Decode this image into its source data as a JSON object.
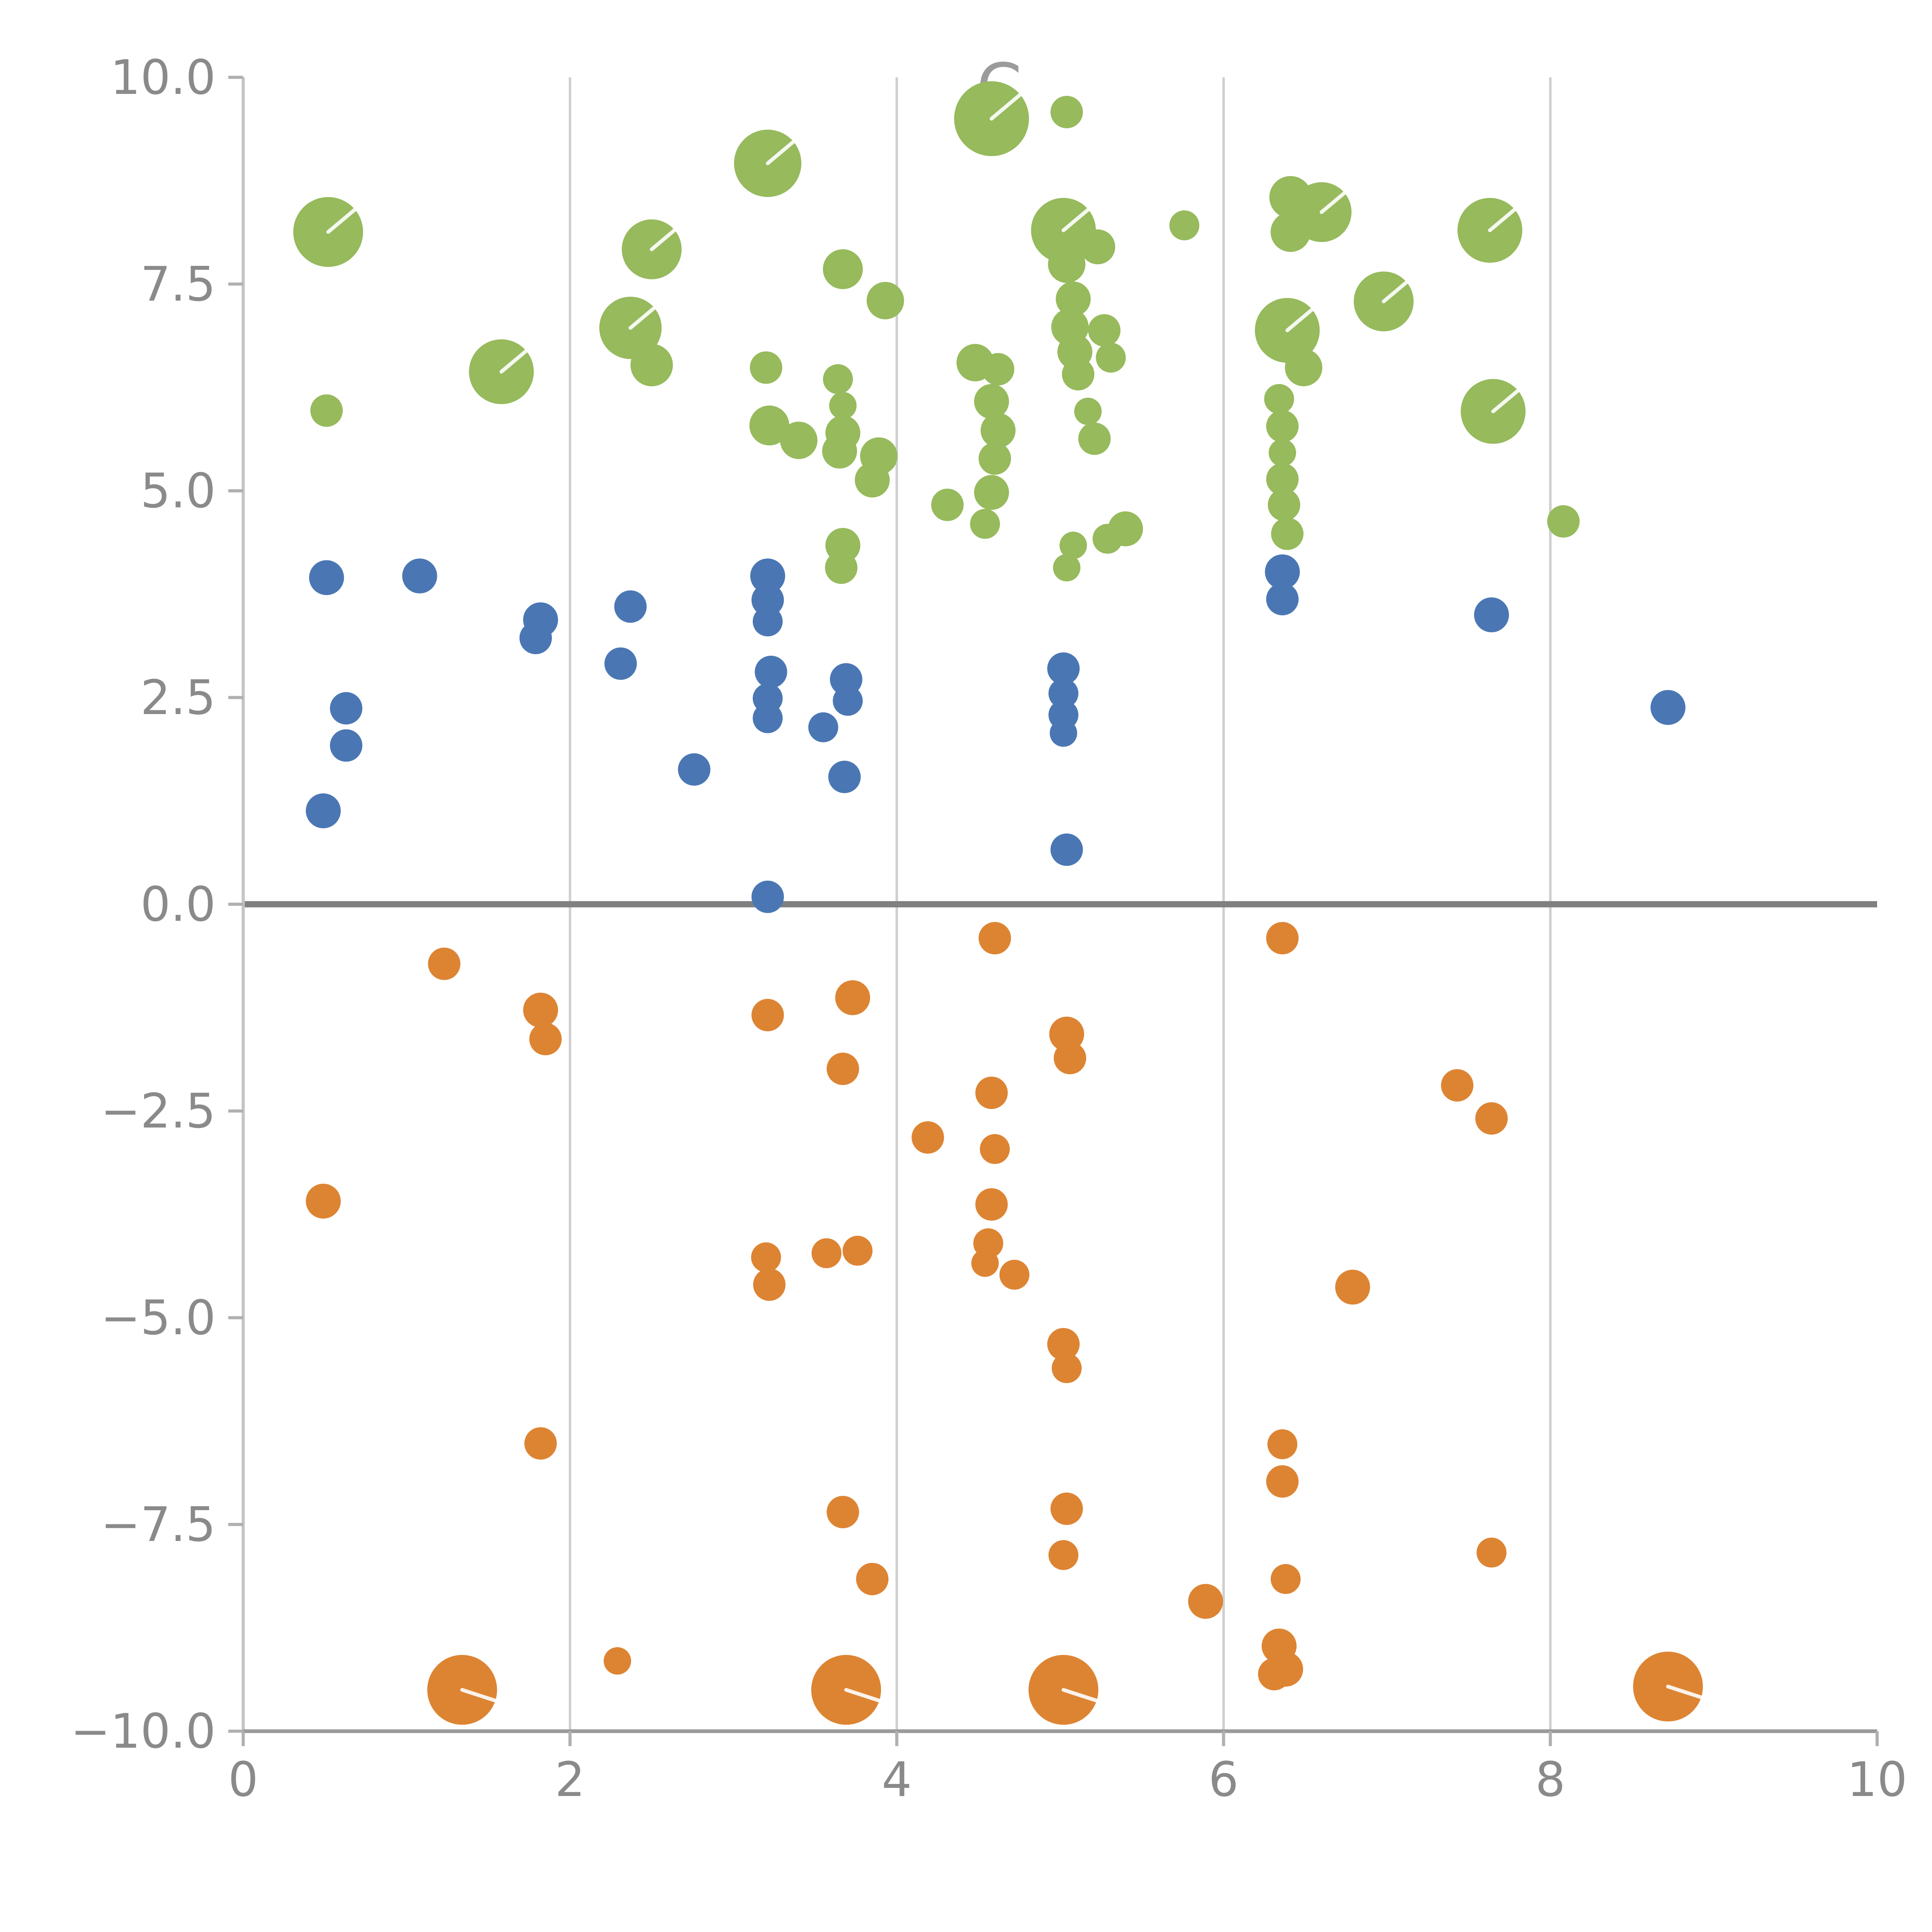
{
  "title": {
    "text": "C",
    "color": "#9b9b9b"
  },
  "colors": {
    "green": "#96ba5c",
    "blue": "#4a77b4",
    "orange": "#dd8433",
    "grid": "#cfcfcf",
    "zero_line": "#808080",
    "axis_text": "#8a8a8a",
    "left_spine": "#c4c4c4",
    "bottom_spine": "#9a9a9a",
    "tick_mark": "#b0b0b0",
    "background": "#ffffff"
  },
  "chart_data": {
    "type": "scatter",
    "title": "C",
    "xlabel": "",
    "ylabel": "",
    "xlim": [
      0,
      10
    ],
    "ylim": [
      -10,
      10
    ],
    "grid": "vertical-only",
    "legend_position": "none",
    "x_ticks": [
      0,
      2,
      4,
      6,
      8,
      10
    ],
    "x_tick_labels": [
      "0",
      "2",
      "4",
      "6",
      "8",
      "10"
    ],
    "y_ticks": [
      10.0,
      7.5,
      5.0,
      2.5,
      0.0,
      -2.5,
      -5.0,
      -7.5,
      -10.0
    ],
    "y_tick_labels": [
      "10.0",
      "7.5",
      "5.0",
      "2.5",
      "0.0",
      "−2.5",
      "−5.0",
      "−7.5",
      "−10.0"
    ],
    "grid_x": [
      2,
      4,
      6,
      8
    ],
    "zero_line_y": 0,
    "series": [
      {
        "name": "green-group",
        "color": "#96ba5c",
        "hand_angle_deg": -40,
        "points": [
          [
            0.52,
            8.13,
            28
          ],
          [
            0.51,
            5.97,
            13
          ],
          [
            1.58,
            6.44,
            26
          ],
          [
            2.5,
            7.92,
            24
          ],
          [
            2.37,
            6.97,
            25
          ],
          [
            2.5,
            6.52,
            17
          ],
          [
            3.21,
            8.96,
            27
          ],
          [
            3.2,
            6.49,
            13
          ],
          [
            3.22,
            5.79,
            16
          ],
          [
            3.4,
            5.61,
            15
          ],
          [
            3.67,
            7.68,
            16
          ],
          [
            3.64,
            6.35,
            12
          ],
          [
            3.67,
            6.03,
            11
          ],
          [
            3.67,
            5.7,
            14
          ],
          [
            3.65,
            5.48,
            14
          ],
          [
            3.93,
            7.3,
            15
          ],
          [
            3.89,
            5.42,
            15
          ],
          [
            3.85,
            5.13,
            14
          ],
          [
            3.67,
            4.34,
            14
          ],
          [
            3.66,
            4.07,
            13
          ],
          [
            4.31,
            4.83,
            13
          ],
          [
            4.58,
            9.5,
            30
          ],
          [
            5.04,
            9.58,
            13
          ],
          [
            4.48,
            6.55,
            15
          ],
          [
            4.62,
            6.47,
            13
          ],
          [
            4.58,
            6.08,
            14
          ],
          [
            4.62,
            5.73,
            14
          ],
          [
            4.6,
            5.39,
            13
          ],
          [
            4.58,
            4.98,
            14
          ],
          [
            4.54,
            4.6,
            12
          ],
          [
            5.02,
            8.15,
            26
          ],
          [
            5.04,
            7.74,
            15
          ],
          [
            5.08,
            7.32,
            14
          ],
          [
            5.06,
            6.98,
            15
          ],
          [
            5.09,
            6.68,
            14
          ],
          [
            5.11,
            6.41,
            13
          ],
          [
            5.23,
            7.95,
            14
          ],
          [
            5.27,
            6.94,
            13
          ],
          [
            5.31,
            6.61,
            12
          ],
          [
            5.17,
            5.96,
            11
          ],
          [
            5.21,
            5.63,
            13
          ],
          [
            5.04,
            4.07,
            11
          ],
          [
            5.08,
            4.34,
            11
          ],
          [
            5.29,
            4.42,
            12
          ],
          [
            5.4,
            4.54,
            14
          ],
          [
            5.76,
            8.21,
            12
          ],
          [
            6.41,
            8.55,
            17
          ],
          [
            6.6,
            8.37,
            24
          ],
          [
            6.41,
            8.13,
            16
          ],
          [
            6.39,
            6.94,
            26
          ],
          [
            6.49,
            6.49,
            15
          ],
          [
            6.34,
            6.11,
            12
          ],
          [
            6.36,
            5.78,
            13
          ],
          [
            6.36,
            5.46,
            11
          ],
          [
            6.36,
            5.14,
            13
          ],
          [
            6.37,
            4.83,
            13
          ],
          [
            6.39,
            4.48,
            13
          ],
          [
            6.98,
            7.29,
            24
          ],
          [
            7.63,
            8.15,
            26
          ],
          [
            7.65,
            5.96,
            26
          ],
          [
            8.08,
            4.63,
            13
          ]
        ]
      },
      {
        "name": "blue-group",
        "color": "#4a77b4",
        "hand_angle_deg": -40,
        "points": [
          [
            0.51,
            3.95,
            14
          ],
          [
            1.08,
            3.97,
            14
          ],
          [
            0.63,
            2.37,
            13
          ],
          [
            0.63,
            1.92,
            13
          ],
          [
            0.49,
            1.13,
            14
          ],
          [
            1.82,
            3.44,
            14
          ],
          [
            1.79,
            3.22,
            13
          ],
          [
            2.37,
            3.6,
            13
          ],
          [
            2.31,
            2.91,
            13
          ],
          [
            2.76,
            1.63,
            13
          ],
          [
            3.21,
            3.97,
            14
          ],
          [
            3.21,
            3.68,
            13
          ],
          [
            3.21,
            3.42,
            12
          ],
          [
            3.23,
            2.81,
            13
          ],
          [
            3.21,
            2.49,
            12
          ],
          [
            3.21,
            2.25,
            12
          ],
          [
            3.21,
            0.09,
            13
          ],
          [
            3.55,
            2.14,
            12
          ],
          [
            3.69,
            2.72,
            13
          ],
          [
            3.7,
            2.46,
            12
          ],
          [
            3.68,
            1.54,
            13
          ],
          [
            5.02,
            2.85,
            13
          ],
          [
            5.02,
            2.55,
            12
          ],
          [
            5.02,
            2.29,
            12
          ],
          [
            5.02,
            2.07,
            11
          ],
          [
            5.04,
            0.66,
            13
          ],
          [
            6.36,
            4.02,
            14
          ],
          [
            6.36,
            3.69,
            13
          ],
          [
            7.64,
            3.5,
            14
          ],
          [
            8.72,
            2.38,
            14
          ]
        ]
      },
      {
        "name": "orange-group",
        "color": "#dd8433",
        "hand_angle_deg": 18,
        "points": [
          [
            0.49,
            -3.59,
            14
          ],
          [
            1.23,
            -0.72,
            13
          ],
          [
            1.82,
            -1.28,
            14
          ],
          [
            1.85,
            -1.63,
            13
          ],
          [
            1.82,
            -6.52,
            13
          ],
          [
            1.34,
            -9.5,
            28
          ],
          [
            2.29,
            -9.15,
            11
          ],
          [
            3.21,
            -1.34,
            13
          ],
          [
            3.2,
            -4.27,
            12
          ],
          [
            3.22,
            -4.6,
            13
          ],
          [
            3.67,
            -1.99,
            13
          ],
          [
            3.73,
            -1.13,
            14
          ],
          [
            3.57,
            -4.22,
            12
          ],
          [
            3.76,
            -4.19,
            12
          ],
          [
            3.67,
            -7.35,
            13
          ],
          [
            3.85,
            -8.16,
            13
          ],
          [
            3.69,
            -9.5,
            28
          ],
          [
            4.19,
            -2.82,
            13
          ],
          [
            4.6,
            -0.41,
            13
          ],
          [
            4.58,
            -2.28,
            13
          ],
          [
            4.6,
            -2.96,
            12
          ],
          [
            4.58,
            -3.63,
            13
          ],
          [
            4.56,
            -4.1,
            12
          ],
          [
            4.54,
            -4.34,
            11
          ],
          [
            4.72,
            -4.48,
            12
          ],
          [
            5.04,
            -1.57,
            14
          ],
          [
            5.06,
            -1.86,
            13
          ],
          [
            5.02,
            -5.32,
            13
          ],
          [
            5.04,
            -5.61,
            12
          ],
          [
            5.04,
            -7.31,
            13
          ],
          [
            5.02,
            -7.87,
            12
          ],
          [
            5.02,
            -9.5,
            28
          ],
          [
            5.89,
            -8.43,
            14
          ],
          [
            6.36,
            -0.41,
            13
          ],
          [
            6.36,
            -6.53,
            12
          ],
          [
            6.36,
            -6.98,
            13
          ],
          [
            6.38,
            -8.16,
            12
          ],
          [
            6.34,
            -8.97,
            14
          ],
          [
            6.38,
            -9.25,
            14
          ],
          [
            6.31,
            -9.31,
            13
          ],
          [
            6.79,
            -4.63,
            14
          ],
          [
            7.43,
            -2.19,
            13
          ],
          [
            7.64,
            -2.59,
            13
          ],
          [
            7.64,
            -7.84,
            12
          ],
          [
            8.72,
            -9.46,
            28
          ]
        ]
      }
    ]
  }
}
